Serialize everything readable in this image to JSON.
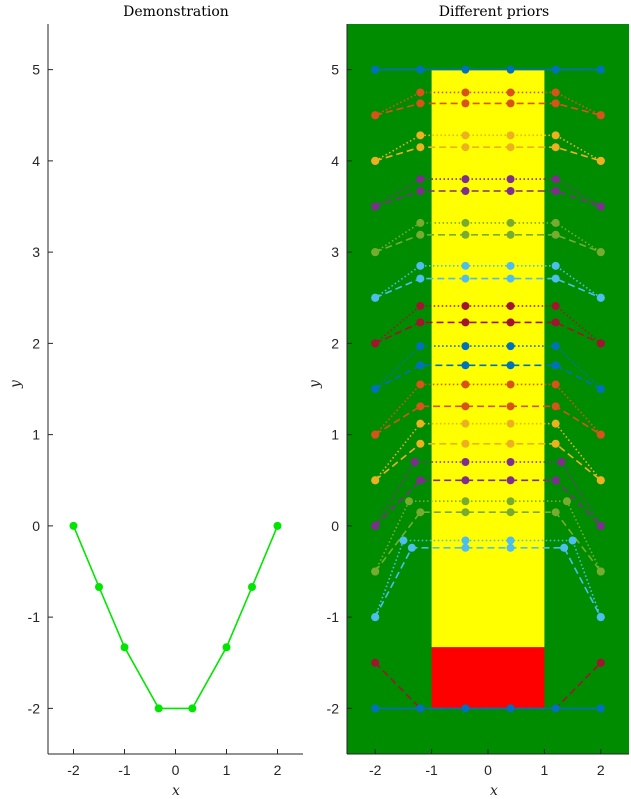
{
  "chart_data": [
    {
      "type": "line",
      "title": "Demonstration",
      "xlabel": "x",
      "ylabel": "y",
      "xlim": [
        -2.5,
        2.5
      ],
      "ylim": [
        -2.5,
        5.5
      ],
      "xticks": [
        -2,
        -1,
        0,
        1,
        2
      ],
      "yticks": [
        -2,
        -1,
        0,
        1,
        2,
        3,
        4,
        5
      ],
      "grid": false,
      "series": [
        {
          "color": "#00e600",
          "style": "solid",
          "x": [
            -2,
            -1.5,
            -1,
            -0.33,
            0.33,
            1,
            1.5,
            2
          ],
          "y": [
            0,
            -0.67,
            -1.33,
            -2,
            -2,
            -1.33,
            -0.67,
            0
          ]
        }
      ]
    },
    {
      "type": "line",
      "title": "Different priors",
      "xlabel": "x",
      "ylabel": "y",
      "xlim": [
        -2.5,
        2.5
      ],
      "ylim": [
        -2.5,
        5.5
      ],
      "xticks": [
        -2,
        -1,
        0,
        1,
        2
      ],
      "yticks": [
        -2,
        -1,
        0,
        1,
        2,
        3,
        4,
        5
      ],
      "grid": false,
      "background_regions": [
        {
          "color": "#008c00",
          "x": [
            -2.5,
            2.5
          ],
          "y": [
            -2.5,
            5.5
          ]
        },
        {
          "color": "#ffff00",
          "x": [
            -1,
            1
          ],
          "y": [
            -1.33,
            5
          ]
        },
        {
          "color": "#ff0000",
          "x": [
            -1,
            1
          ],
          "y": [
            -2,
            -1.33
          ]
        }
      ],
      "series": [
        {
          "color": "#0072bd",
          "style": "solid",
          "x": [
            -2,
            -1.2,
            -0.4,
            0.4,
            1.2,
            2
          ],
          "y": [
            5,
            5,
            5,
            5,
            5,
            5
          ]
        },
        {
          "color": "#d95319",
          "style": "dotted",
          "x": [
            -2,
            -1.2,
            -0.4,
            0.4,
            1.2,
            2
          ],
          "y": [
            4.5,
            4.75,
            4.75,
            4.75,
            4.75,
            4.5
          ]
        },
        {
          "color": "#d95319",
          "style": "dashed",
          "x": [
            -2,
            -1.2,
            -0.4,
            0.4,
            1.2,
            2
          ],
          "y": [
            4.5,
            4.63,
            4.63,
            4.63,
            4.63,
            4.5
          ]
        },
        {
          "color": "#edb120",
          "style": "dotted",
          "x": [
            -2,
            -1.2,
            -0.4,
            0.4,
            1.2,
            2
          ],
          "y": [
            4,
            4.28,
            4.28,
            4.28,
            4.28,
            4
          ]
        },
        {
          "color": "#edb120",
          "style": "dashed",
          "x": [
            -2,
            -1.2,
            -0.4,
            0.4,
            1.2,
            2
          ],
          "y": [
            4,
            4.15,
            4.15,
            4.15,
            4.15,
            4
          ]
        },
        {
          "color": "#7e2f8e",
          "style": "dotted",
          "x": [
            -2,
            -1.2,
            -0.4,
            0.4,
            1.2,
            2
          ],
          "y": [
            3.5,
            3.8,
            3.8,
            3.8,
            3.8,
            3.5
          ]
        },
        {
          "color": "#7e2f8e",
          "style": "dashed",
          "x": [
            -2,
            -1.2,
            -0.4,
            0.4,
            1.2,
            2
          ],
          "y": [
            3.5,
            3.67,
            3.67,
            3.67,
            3.67,
            3.5
          ]
        },
        {
          "color": "#77ac30",
          "style": "dotted",
          "x": [
            -2,
            -1.2,
            -0.4,
            0.4,
            1.2,
            2
          ],
          "y": [
            3,
            3.32,
            3.32,
            3.32,
            3.32,
            3
          ]
        },
        {
          "color": "#77ac30",
          "style": "dashed",
          "x": [
            -2,
            -1.2,
            -0.4,
            0.4,
            1.2,
            2
          ],
          "y": [
            3,
            3.19,
            3.19,
            3.19,
            3.19,
            3
          ]
        },
        {
          "color": "#4dbeee",
          "style": "dotted",
          "x": [
            -2,
            -1.2,
            -0.4,
            0.4,
            1.2,
            2
          ],
          "y": [
            2.5,
            2.85,
            2.85,
            2.85,
            2.85,
            2.5
          ]
        },
        {
          "color": "#4dbeee",
          "style": "dashed",
          "x": [
            -2,
            -1.2,
            -0.4,
            0.4,
            1.2,
            2
          ],
          "y": [
            2.5,
            2.71,
            2.71,
            2.71,
            2.71,
            2.5
          ]
        },
        {
          "color": "#a2142f",
          "style": "dotted",
          "x": [
            -2,
            -1.2,
            -0.4,
            0.4,
            1.2,
            2
          ],
          "y": [
            2,
            2.41,
            2.41,
            2.41,
            2.41,
            2
          ]
        },
        {
          "color": "#a2142f",
          "style": "dashed",
          "x": [
            -2,
            -1.2,
            -0.4,
            0.4,
            1.2,
            2
          ],
          "y": [
            2,
            2.23,
            2.23,
            2.23,
            2.23,
            2
          ]
        },
        {
          "color": "#0072bd",
          "style": "dotted",
          "x": [
            -2,
            -1.2,
            -0.4,
            0.4,
            1.2,
            2
          ],
          "y": [
            1.5,
            1.97,
            1.97,
            1.97,
            1.97,
            1.5
          ]
        },
        {
          "color": "#0072bd",
          "style": "dashed",
          "x": [
            -2,
            -1.2,
            -0.4,
            0.4,
            1.2,
            2
          ],
          "y": [
            1.5,
            1.76,
            1.76,
            1.76,
            1.76,
            1.5
          ]
        },
        {
          "color": "#d95319",
          "style": "dotted",
          "x": [
            -2,
            -1.2,
            -0.4,
            0.4,
            1.2,
            2
          ],
          "y": [
            1,
            1.55,
            1.55,
            1.55,
            1.55,
            1
          ]
        },
        {
          "color": "#d95319",
          "style": "dashed",
          "x": [
            -2,
            -1.2,
            -0.4,
            0.4,
            1.2,
            2
          ],
          "y": [
            1,
            1.31,
            1.31,
            1.31,
            1.31,
            1
          ]
        },
        {
          "color": "#edb120",
          "style": "dotted",
          "x": [
            -2,
            -1.2,
            -0.4,
            0.4,
            1.2,
            2
          ],
          "y": [
            0.5,
            1.12,
            1.12,
            1.12,
            1.12,
            0.5
          ]
        },
        {
          "color": "#edb120",
          "style": "dashed",
          "x": [
            -2,
            -1.2,
            -0.4,
            0.4,
            1.2,
            2
          ],
          "y": [
            0.5,
            0.9,
            0.9,
            0.9,
            0.9,
            0.5
          ]
        },
        {
          "color": "#7e2f8e",
          "style": "dotted",
          "x": [
            -2,
            -1.3,
            -0.4,
            0.4,
            1.3,
            2
          ],
          "y": [
            0,
            0.7,
            0.7,
            0.7,
            0.7,
            0
          ]
        },
        {
          "color": "#7e2f8e",
          "style": "dashed",
          "x": [
            -2,
            -1.2,
            -0.4,
            0.4,
            1.2,
            2
          ],
          "y": [
            0,
            0.5,
            0.5,
            0.5,
            0.5,
            0
          ]
        },
        {
          "color": "#77ac30",
          "style": "dotted",
          "x": [
            -2,
            -1.4,
            -0.4,
            0.4,
            1.4,
            2
          ],
          "y": [
            -0.5,
            0.27,
            0.27,
            0.27,
            0.27,
            -0.5
          ]
        },
        {
          "color": "#77ac30",
          "style": "dashed",
          "x": [
            -2,
            -1.2,
            -0.4,
            0.4,
            1.2,
            2
          ],
          "y": [
            -0.5,
            0.15,
            0.15,
            0.15,
            0.15,
            -0.5
          ]
        },
        {
          "color": "#4dbeee",
          "style": "dotted",
          "x": [
            -2,
            -1.5,
            -0.4,
            0.4,
            1.5,
            2
          ],
          "y": [
            -1,
            -0.16,
            -0.16,
            -0.16,
            -0.16,
            -1
          ]
        },
        {
          "color": "#4dbeee",
          "style": "dashed",
          "x": [
            -2,
            -1.35,
            -0.4,
            0.4,
            1.35,
            2
          ],
          "y": [
            -1,
            -0.24,
            -0.24,
            -0.24,
            -0.24,
            -1
          ]
        },
        {
          "color": "#a2142f",
          "style": "dashed",
          "x": [
            -2,
            -1.2,
            -0.4,
            0.4,
            1.2,
            2
          ],
          "y": [
            -1.5,
            -2,
            -2,
            -2,
            -2,
            -1.5
          ]
        },
        {
          "color": "#0072bd",
          "style": "solid",
          "x": [
            -2,
            -1.2,
            -0.4,
            0.4,
            1.2,
            2
          ],
          "y": [
            -2,
            -2,
            -2,
            -2,
            -2,
            -2
          ]
        }
      ]
    }
  ]
}
